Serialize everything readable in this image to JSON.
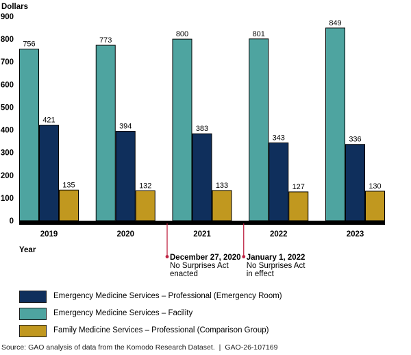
{
  "chart_data": {
    "type": "bar",
    "title": "",
    "ylabel": "Dollars",
    "xlabel": "Year",
    "categories": [
      "2019",
      "2020",
      "2021",
      "2022",
      "2023"
    ],
    "series": [
      {
        "key": "emergency-facility",
        "name": "Emergency Medicine Services – Facility",
        "color": "#4EA4A0",
        "values": [
          756,
          773,
          800,
          801,
          849
        ]
      },
      {
        "key": "emergency-professional",
        "name": "Emergency Medicine Services – Professional (Emergency Room)",
        "color": "#0F2F5C",
        "values": [
          421,
          394,
          383,
          343,
          336
        ]
      },
      {
        "key": "family-professional",
        "name": "Family Medicine Services – Professional (Comparison Group)",
        "color": "#C1981F",
        "values": [
          135,
          132,
          133,
          127,
          130
        ]
      }
    ],
    "ylim": [
      0,
      900
    ],
    "ytick_step": 100,
    "grid": false,
    "bar_value_labels": true,
    "legend_position": "bottom",
    "annotations": [
      {
        "before_category": "2021",
        "lines": [
          "December 27, 2020",
          "No Surprises Act",
          "enacted"
        ],
        "color": "#BE2342"
      },
      {
        "before_category": "2022",
        "lines": [
          "January 1, 2022",
          "No Surprises Act",
          "in effect"
        ],
        "color": "#BE2342"
      }
    ]
  },
  "legend": {
    "items": [
      {
        "label": "Emergency Medicine Services – Professional (Emergency Room)",
        "color": "#0F2F5C"
      },
      {
        "label": "Emergency Medicine Services – Facility",
        "color": "#4EA4A0"
      },
      {
        "label": "Family Medicine Services – Professional (Comparison Group)",
        "color": "#C1981F"
      }
    ]
  },
  "source_line": {
    "text": "Source: GAO analysis of data from the Komodo Research Dataset.",
    "separator": "|",
    "report_number": "GAO-26-107169"
  }
}
